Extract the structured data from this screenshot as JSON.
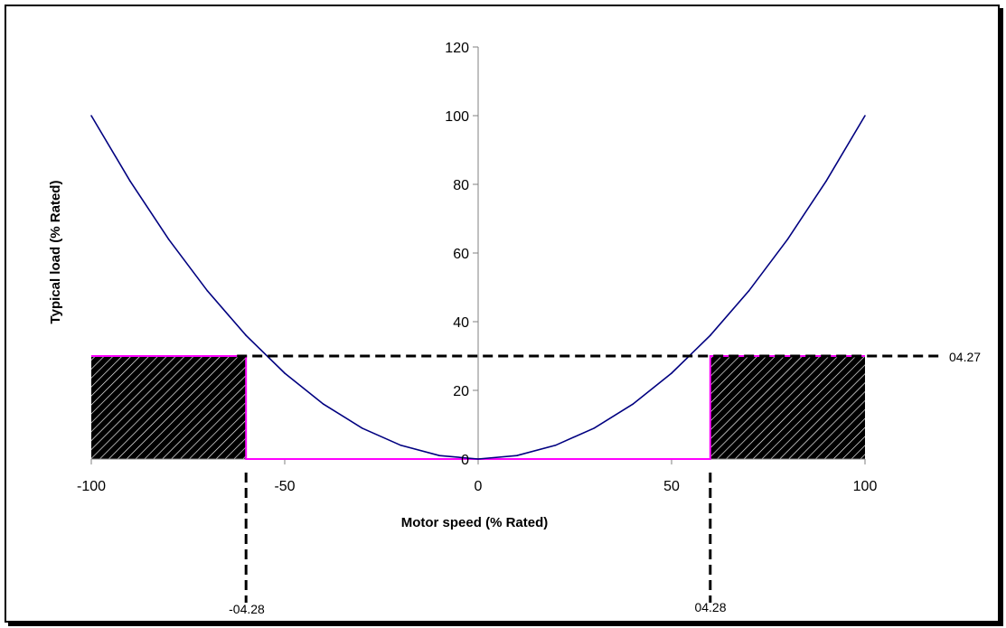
{
  "chart_data": {
    "type": "line",
    "title": "",
    "xlabel": "Motor speed (% Rated)",
    "ylabel": "Typical load (% Rated)",
    "xlim": [
      -100,
      100
    ],
    "ylim": [
      0,
      120
    ],
    "x_ticks": [
      "-100",
      "-50",
      "0",
      "50",
      "100"
    ],
    "y_ticks": [
      "0",
      "20",
      "40",
      "60",
      "80",
      "100",
      "120"
    ],
    "series": [
      {
        "x": [
          -100,
          -90,
          -80,
          -70,
          -60,
          -50,
          -40,
          -30,
          -20,
          -10,
          0,
          10,
          20,
          30,
          40,
          50,
          60,
          70,
          80,
          90,
          100
        ],
        "y": [
          100,
          81,
          64,
          49,
          36,
          25,
          16,
          9,
          4,
          1,
          0,
          1,
          4,
          9,
          16,
          25,
          36,
          49,
          64,
          81,
          100
        ]
      }
    ],
    "threshold_load": 30,
    "threshold_speed_neg": -60,
    "threshold_speed_pos": 60,
    "annotations": {
      "load_threshold_label": "04.27",
      "neg_speed_label": "-04.28",
      "pos_speed_label": "04.28"
    },
    "colors": {
      "curve": "#000080",
      "window": "#ff00ff",
      "hatch": "#000000"
    }
  }
}
